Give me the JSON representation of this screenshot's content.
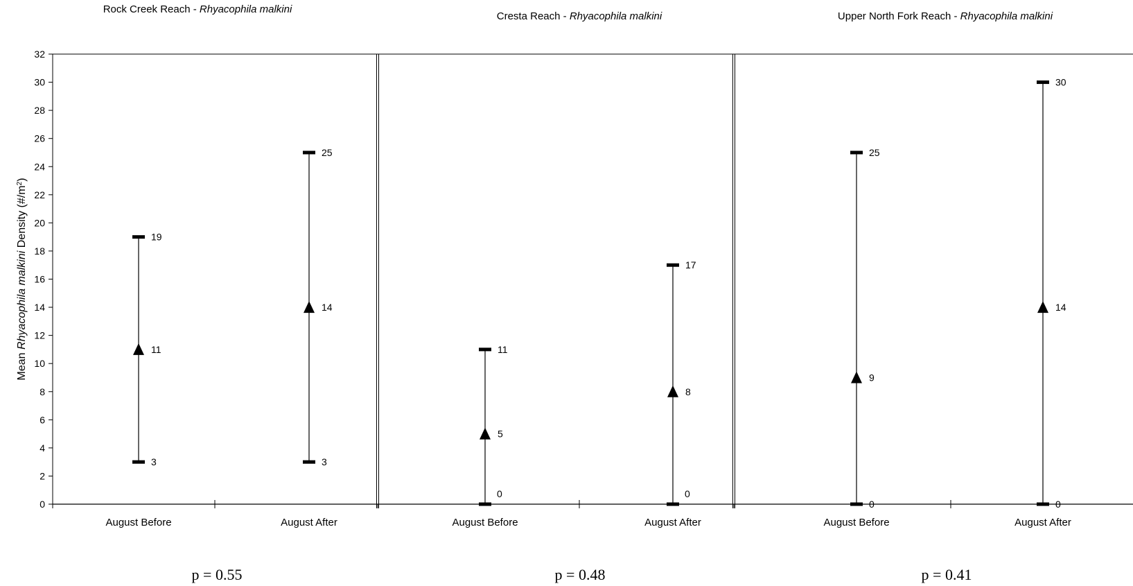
{
  "chart_data": {
    "type": "range",
    "ylabel": {
      "pre": "Mean ",
      "italic": "Rhyacophila malkini",
      "post": " Density (#/m",
      "sup": "2",
      "end": ")"
    },
    "ylim": [
      0,
      32
    ],
    "yticks": [
      0,
      2,
      4,
      6,
      8,
      10,
      12,
      14,
      16,
      18,
      20,
      22,
      24,
      26,
      28,
      30,
      32
    ],
    "panels": [
      {
        "title": "Rock Creek Reach - ",
        "title_italic": "Rhyacophila malkini",
        "categories": [
          "August Before",
          "August After"
        ],
        "mean": [
          11,
          14
        ],
        "low": [
          3,
          3
        ],
        "high": [
          19,
          25
        ],
        "p_value": "p = 0.55"
      },
      {
        "title": "Cresta Reach - ",
        "title_italic": "Rhyacophila malkini",
        "categories": [
          "August Before",
          "August After"
        ],
        "mean": [
          5,
          8
        ],
        "low": [
          0,
          0
        ],
        "high": [
          11,
          17
        ],
        "p_value": "p = 0.48"
      },
      {
        "title": "Upper North Fork Reach - ",
        "title_italic": "Rhyacophila malkini",
        "categories": [
          "August Before",
          "August After"
        ],
        "mean": [
          9,
          14
        ],
        "low": [
          0,
          0
        ],
        "high": [
          25,
          30
        ],
        "p_value": "p = 0.41"
      }
    ]
  }
}
